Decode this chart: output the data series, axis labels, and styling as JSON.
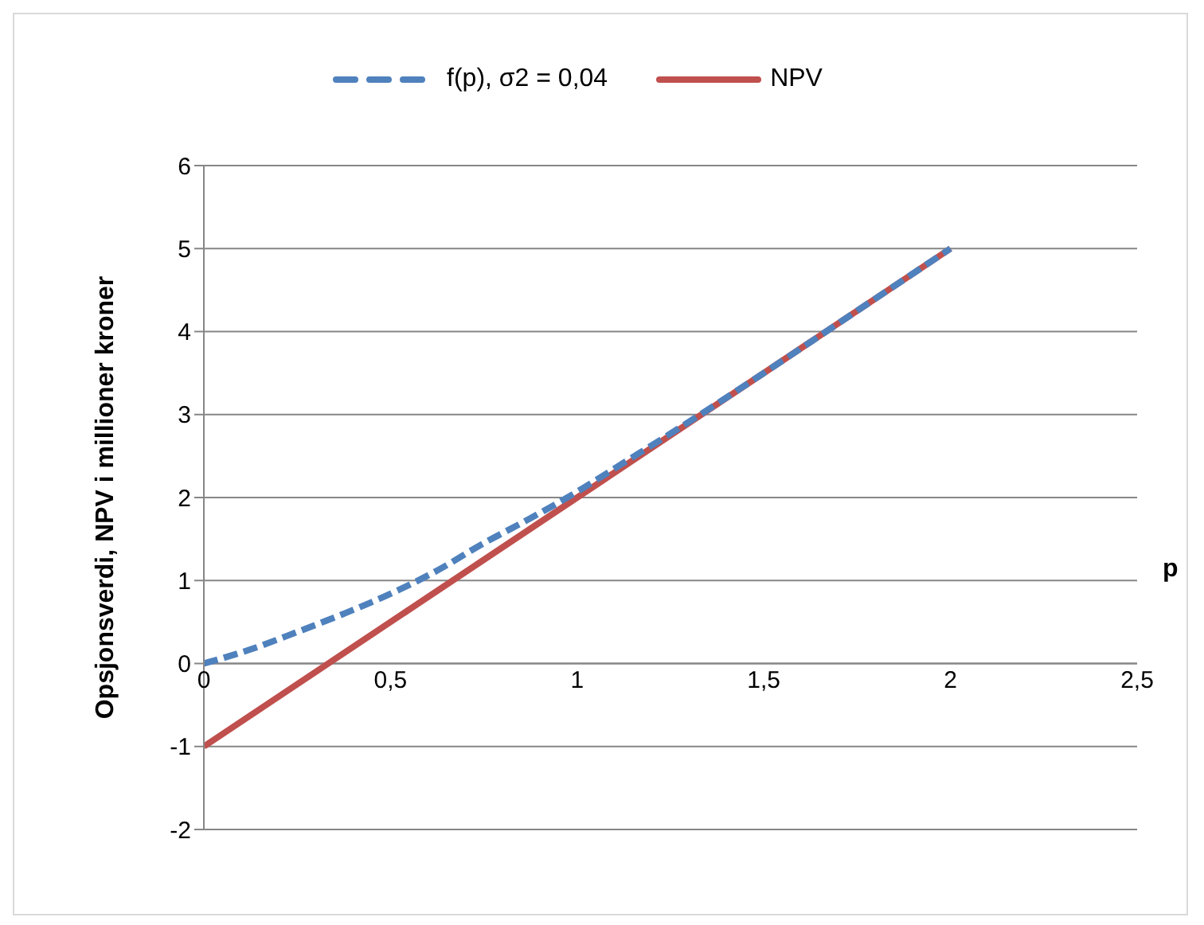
{
  "chart_data": {
    "type": "line",
    "xlabel": "p",
    "ylabel": "Opsjonsverdi, NPV i millioner kroner",
    "series": [
      {
        "name": "f(p), σ2 = 0,04",
        "color": "#4f81bd",
        "line_style": "dashed",
        "x": [
          0,
          0.125,
          0.25,
          0.375,
          0.5,
          0.625,
          0.75,
          0.875,
          1,
          1.125,
          1.25,
          1.5,
          1.75,
          2
        ],
        "values": [
          0,
          0.17,
          0.38,
          0.6,
          0.84,
          1.12,
          1.45,
          1.75,
          2.07,
          2.42,
          2.77,
          3.5,
          4.25,
          5
        ]
      },
      {
        "name": "NPV",
        "color": "#c0504d",
        "line_style": "solid",
        "x": [
          0,
          2
        ],
        "values": [
          -1,
          5
        ]
      }
    ],
    "xlim": [
      0,
      2.5
    ],
    "xticks": [
      {
        "value": 0,
        "label": "0"
      },
      {
        "value": 0.5,
        "label": "0,5"
      },
      {
        "value": 1,
        "label": "1"
      },
      {
        "value": 1.5,
        "label": "1,5"
      },
      {
        "value": 2,
        "label": "2"
      },
      {
        "value": 2.5,
        "label": "2,5"
      }
    ],
    "ylim": [
      -2,
      6
    ],
    "yticks": [
      -2,
      -1,
      0,
      1,
      2,
      3,
      4,
      5,
      6
    ],
    "grid": "y",
    "legend": "top",
    "marker": "none"
  }
}
